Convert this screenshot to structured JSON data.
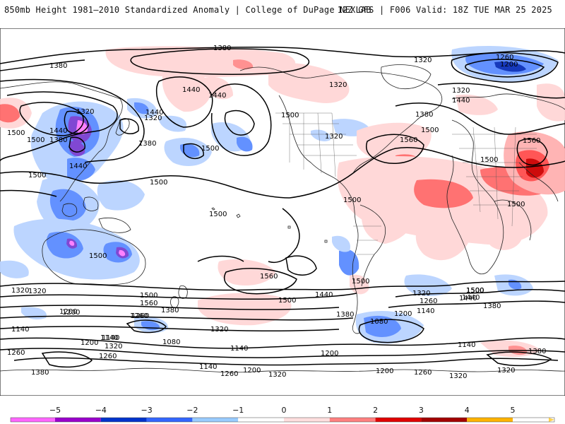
{
  "header": {
    "left_title": "850mb Height 1981–2010 Standardized Anomaly | College of DuPage NEXLAB",
    "right_title": "12Z GFS | F006 Valid: 18Z TUE MAR 25 2025"
  },
  "colorbar": {
    "ticks": [
      "−5",
      "−4",
      "−3",
      "−2",
      "−1",
      "0",
      "1",
      "2",
      "3",
      "4",
      "5"
    ],
    "colors": [
      "#ff66ff",
      "#9900cc",
      "#0033cc",
      "#3366ff",
      "#99ccff",
      "#ffffff",
      "#ffcccc",
      "#ff6666",
      "#cc0000",
      "#990000",
      "#ffaa00"
    ]
  },
  "contour_labels": [
    "1380",
    "1380",
    "1320",
    "1260",
    "1200",
    "1320",
    "1380",
    "1440",
    "1500",
    "1560",
    "1500",
    "1440",
    "1440",
    "1320",
    "1320",
    "1500",
    "1440",
    "1380",
    "1500",
    "1500",
    "1500",
    "1500",
    "1500",
    "1500",
    "1500",
    "1500",
    "1440",
    "1380",
    "1320",
    "1440",
    "1500",
    "1500",
    "1500",
    "1560",
    "1560",
    "1500",
    "1500",
    "1560",
    "1440",
    "1380",
    "1320",
    "1200",
    "1140",
    "1080",
    "1260",
    "1320",
    "1260",
    "1200",
    "1140",
    "1380",
    "1440",
    "1500",
    "1380",
    "1320",
    "1260",
    "1200",
    "1140",
    "1080",
    "1140",
    "1320",
    "1260",
    "1200",
    "1140",
    "1260",
    "1200",
    "1140",
    "1140",
    "1200",
    "1260",
    "1320",
    "1200",
    "1260",
    "1320",
    "1320",
    "1380",
    "1500",
    "1380",
    "1440",
    "1320",
    "1320"
  ]
}
